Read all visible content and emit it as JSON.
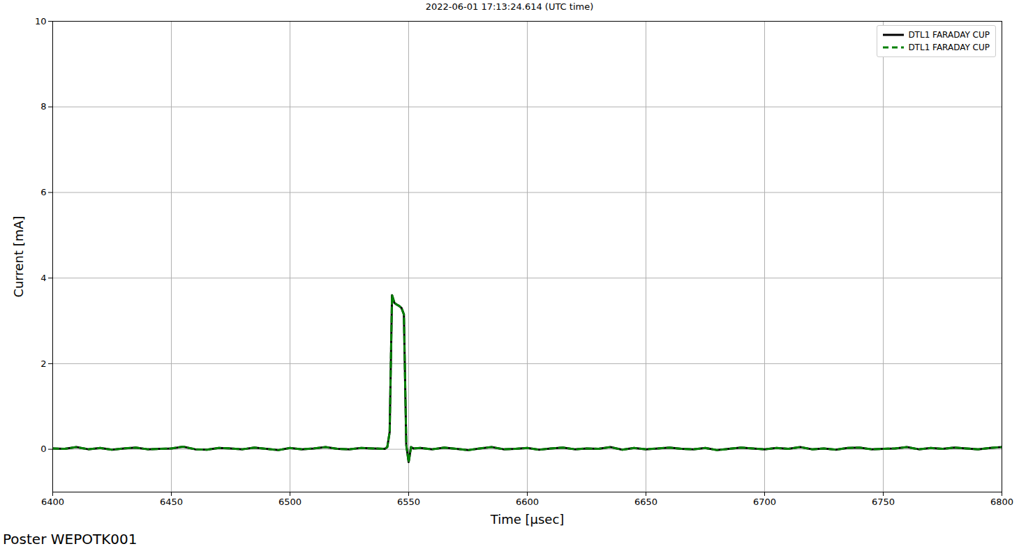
{
  "chart_data": {
    "type": "line",
    "title": "2022-06-01 17:13:24.614 (UTC time)",
    "x_label": "Time [μsec]",
    "y_label": "Current [mA]",
    "note": "Poster WEPOTK001",
    "x": [
      6400,
      6405,
      6410,
      6415,
      6420,
      6425,
      6430,
      6435,
      6440,
      6445,
      6450,
      6455,
      6460,
      6465,
      6470,
      6475,
      6480,
      6485,
      6490,
      6495,
      6500,
      6505,
      6510,
      6515,
      6520,
      6525,
      6530,
      6535,
      6540,
      6541,
      6542,
      6543,
      6544,
      6545,
      6546,
      6547,
      6548,
      6549,
      6550,
      6551,
      6552,
      6555,
      6560,
      6565,
      6570,
      6575,
      6580,
      6585,
      6590,
      6595,
      6600,
      6605,
      6610,
      6615,
      6620,
      6625,
      6630,
      6635,
      6640,
      6645,
      6650,
      6655,
      6660,
      6665,
      6670,
      6675,
      6680,
      6685,
      6690,
      6695,
      6700,
      6705,
      6710,
      6715,
      6720,
      6725,
      6730,
      6735,
      6740,
      6745,
      6750,
      6755,
      6760,
      6765,
      6770,
      6775,
      6780,
      6785,
      6790,
      6795,
      6800
    ],
    "series": [
      {
        "name": "DTL1 FARADAY CUP",
        "color": "#000000",
        "line_style": "solid",
        "values": [
          0.02,
          0.01,
          0.05,
          0.0,
          0.03,
          -0.01,
          0.02,
          0.04,
          0.0,
          0.01,
          0.02,
          0.06,
          0.0,
          -0.01,
          0.03,
          0.02,
          0.0,
          0.04,
          0.01,
          -0.02,
          0.03,
          0.0,
          0.02,
          0.05,
          0.01,
          0.0,
          0.03,
          0.02,
          0.01,
          0.05,
          0.4,
          3.6,
          3.42,
          3.38,
          3.35,
          3.3,
          3.15,
          0.1,
          -0.3,
          0.05,
          0.02,
          0.03,
          0.0,
          0.04,
          0.01,
          -0.02,
          0.02,
          0.05,
          0.0,
          0.01,
          0.03,
          -0.01,
          0.02,
          0.04,
          0.0,
          0.02,
          0.01,
          0.05,
          -0.01,
          0.03,
          0.0,
          0.02,
          0.04,
          0.01,
          0.0,
          0.03,
          -0.02,
          0.01,
          0.04,
          0.02,
          0.0,
          0.03,
          0.01,
          0.05,
          0.0,
          0.02,
          -0.01,
          0.03,
          0.04,
          0.0,
          0.01,
          0.02,
          0.05,
          0.0,
          0.03,
          0.01,
          0.04,
          0.02,
          0.0,
          0.03,
          0.05
        ]
      },
      {
        "name": "DTL1 FARADAY CUP",
        "color": "#008000",
        "line_style": "dashed",
        "values": [
          0.02,
          0.01,
          0.05,
          0.0,
          0.03,
          -0.01,
          0.02,
          0.04,
          0.0,
          0.01,
          0.02,
          0.06,
          0.0,
          -0.01,
          0.03,
          0.02,
          0.0,
          0.04,
          0.01,
          -0.02,
          0.03,
          0.0,
          0.02,
          0.05,
          0.01,
          0.0,
          0.03,
          0.02,
          0.01,
          0.05,
          0.4,
          3.6,
          3.42,
          3.38,
          3.35,
          3.3,
          3.15,
          0.1,
          -0.3,
          0.05,
          0.02,
          0.03,
          0.0,
          0.04,
          0.01,
          -0.02,
          0.02,
          0.05,
          0.0,
          0.01,
          0.03,
          -0.01,
          0.02,
          0.04,
          0.0,
          0.02,
          0.01,
          0.05,
          -0.01,
          0.03,
          0.0,
          0.02,
          0.04,
          0.01,
          0.0,
          0.03,
          -0.02,
          0.01,
          0.04,
          0.02,
          0.0,
          0.03,
          0.01,
          0.05,
          0.0,
          0.02,
          -0.01,
          0.03,
          0.04,
          0.0,
          0.01,
          0.02,
          0.05,
          0.0,
          0.03,
          0.01,
          0.04,
          0.02,
          0.0,
          0.03,
          0.05
        ]
      }
    ],
    "xlim": [
      6400,
      6800
    ],
    "xticks": [
      6400,
      6450,
      6500,
      6550,
      6600,
      6650,
      6700,
      6750,
      6800
    ],
    "ylim": [
      -1,
      10
    ],
    "yticks": [
      0,
      2,
      4,
      6,
      8,
      10
    ],
    "grid": true,
    "legend": "upper right"
  }
}
